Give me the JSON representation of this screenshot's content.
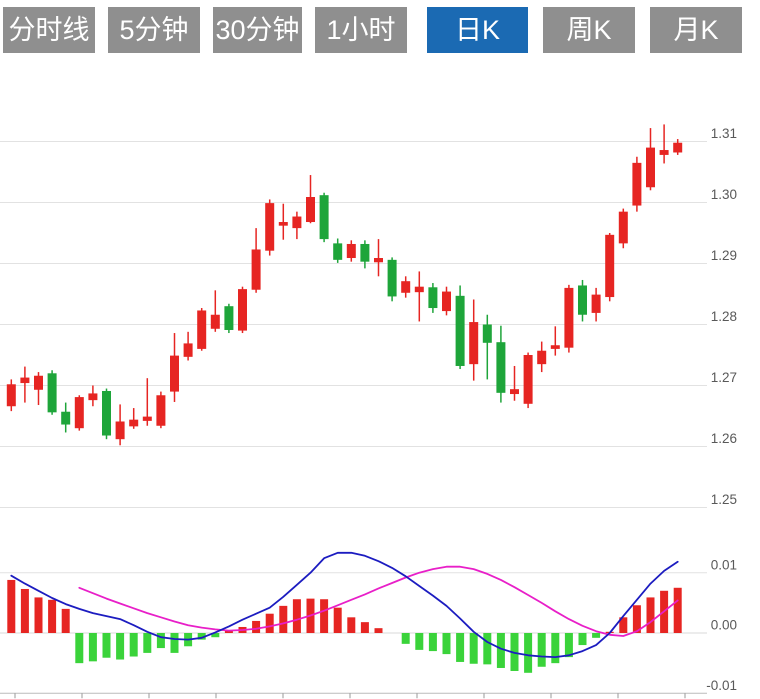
{
  "tabs": {
    "items": [
      {
        "label": "分时线",
        "active": false
      },
      {
        "label": "5分钟",
        "active": false
      },
      {
        "label": "30分钟",
        "active": false
      },
      {
        "label": "1小时",
        "active": false
      },
      {
        "label": "日K",
        "active": true
      },
      {
        "label": "周K",
        "active": false
      },
      {
        "label": "月K",
        "active": false
      }
    ]
  },
  "chart_data": {
    "type": "candlestick",
    "title": "",
    "legend_position": "none",
    "grid": true,
    "price_axis": {
      "side": "right",
      "tick_labels": [
        "1.31",
        "1.30",
        "1.29",
        "1.28",
        "1.27",
        "1.26",
        "1.25"
      ],
      "tick_values": [
        1.31,
        1.3,
        1.29,
        1.28,
        1.27,
        1.26,
        1.25
      ],
      "range": [
        1.245,
        1.315
      ]
    },
    "candles_ohlc": [
      [
        1.2666,
        1.271,
        1.2658,
        1.2702
      ],
      [
        1.2704,
        1.2731,
        1.2672,
        1.2713
      ],
      [
        1.2693,
        1.2722,
        1.2668,
        1.2716
      ],
      [
        1.272,
        1.2725,
        1.2652,
        1.2656
      ],
      [
        1.2657,
        1.2672,
        1.2623,
        1.2636
      ],
      [
        1.263,
        1.2684,
        1.2626,
        1.2681
      ],
      [
        1.2676,
        1.27,
        1.2666,
        1.2687
      ],
      [
        1.2691,
        1.2695,
        1.2612,
        1.2618
      ],
      [
        1.2612,
        1.2669,
        1.2602,
        1.2641
      ],
      [
        1.2633,
        1.2663,
        1.2629,
        1.2644
      ],
      [
        1.2642,
        1.2712,
        1.2634,
        1.2649
      ],
      [
        1.2634,
        1.269,
        1.263,
        1.2684
      ],
      [
        1.269,
        1.2786,
        1.2673,
        1.2749
      ],
      [
        1.2747,
        1.2788,
        1.2741,
        1.2769
      ],
      [
        1.276,
        1.2827,
        1.2757,
        1.2823
      ],
      [
        1.2793,
        1.2856,
        1.2788,
        1.2816
      ],
      [
        1.283,
        1.2834,
        1.2786,
        1.2791
      ],
      [
        1.279,
        1.2862,
        1.2786,
        1.2858
      ],
      [
        1.2857,
        1.2958,
        1.2852,
        1.2923
      ],
      [
        1.2921,
        1.3005,
        1.2913,
        1.2999
      ],
      [
        1.2962,
        1.2998,
        1.2939,
        1.2968
      ],
      [
        1.2958,
        1.2985,
        1.294,
        1.2977
      ],
      [
        1.2968,
        1.3045,
        1.2966,
        1.3009
      ],
      [
        1.3012,
        1.3016,
        1.2935,
        1.294
      ],
      [
        1.2933,
        1.2941,
        1.2901,
        1.2906
      ],
      [
        1.2909,
        1.2938,
        1.2903,
        1.2932
      ],
      [
        1.2932,
        1.2938,
        1.2892,
        1.2903
      ],
      [
        1.2902,
        1.294,
        1.2879,
        1.2909
      ],
      [
        1.2906,
        1.291,
        1.2838,
        1.2846
      ],
      [
        1.2852,
        1.2879,
        1.2844,
        1.2871
      ],
      [
        1.2853,
        1.2887,
        1.2805,
        1.2862
      ],
      [
        1.2861,
        1.2868,
        1.2819,
        1.2827
      ],
      [
        1.2822,
        1.2862,
        1.2815,
        1.2854
      ],
      [
        1.2847,
        1.2864,
        1.2727,
        1.2732
      ],
      [
        1.2735,
        1.2841,
        1.2708,
        1.2804
      ],
      [
        1.28,
        1.2816,
        1.271,
        1.277
      ],
      [
        1.2771,
        1.2798,
        1.2672,
        1.2688
      ],
      [
        1.2686,
        1.2732,
        1.2675,
        1.2694
      ],
      [
        1.267,
        1.2754,
        1.2663,
        1.275
      ],
      [
        1.2735,
        1.2772,
        1.2722,
        1.2757
      ],
      [
        1.276,
        1.2797,
        1.2749,
        1.2766
      ],
      [
        1.2762,
        1.2865,
        1.2754,
        1.286
      ],
      [
        1.2864,
        1.2873,
        1.2805,
        1.2816
      ],
      [
        1.2819,
        1.286,
        1.2805,
        1.2849
      ],
      [
        1.2845,
        1.295,
        1.2838,
        1.2947
      ],
      [
        1.2933,
        1.299,
        1.2925,
        1.2985
      ],
      [
        1.2995,
        1.3075,
        1.2985,
        1.3065
      ],
      [
        1.3025,
        1.3122,
        1.302,
        1.309
      ],
      [
        1.3078,
        1.3128,
        1.3064,
        1.3086
      ],
      [
        1.3082,
        1.3104,
        1.3078,
        1.3098
      ]
    ],
    "macd": {
      "axis_tick_labels": [
        "0.01",
        "0.00",
        "-0.01"
      ],
      "axis_tick_values": [
        0.01,
        0.0,
        -0.01
      ],
      "histogram": [
        0.0088,
        0.0073,
        0.0059,
        0.0055,
        0.004,
        -0.005,
        -0.0047,
        -0.0041,
        -0.0044,
        -0.0039,
        -0.0033,
        -0.0025,
        -0.0033,
        -0.0022,
        -0.0011,
        -0.0007,
        0.0004,
        0.001,
        0.002,
        0.0032,
        0.0045,
        0.0056,
        0.0057,
        0.0056,
        0.0042,
        0.0026,
        0.0018,
        0.0008,
        0.0,
        -0.0018,
        -0.0028,
        -0.003,
        -0.0035,
        -0.0048,
        -0.0051,
        -0.0052,
        -0.0058,
        -0.0063,
        -0.0066,
        -0.0056,
        -0.005,
        -0.004,
        -0.002,
        -0.0008,
        0.0002,
        0.0026,
        0.0046,
        0.0059,
        0.007,
        0.0075
      ],
      "dif_line": [
        0.0095,
        0.0082,
        0.007,
        0.0058,
        0.0048,
        0.004,
        0.0033,
        0.0028,
        0.0023,
        0.0013,
        0.0002,
        -0.0007,
        -0.001,
        -0.0011,
        -0.0008,
        0.0001,
        0.0011,
        0.0022,
        0.0032,
        0.0042,
        0.006,
        0.008,
        0.01,
        0.0124,
        0.0133,
        0.0133,
        0.0128,
        0.0119,
        0.0108,
        0.0094,
        0.0078,
        0.0062,
        0.0045,
        0.0024,
        0.0002,
        -0.0015,
        -0.0026,
        -0.0033,
        -0.0037,
        -0.0039,
        -0.004,
        -0.0037,
        -0.003,
        -0.002,
        0.0,
        0.0028,
        0.0055,
        0.0082,
        0.0103,
        0.0118
      ],
      "dea_line": [
        null,
        null,
        null,
        null,
        null,
        0.0075,
        0.0066,
        0.0057,
        0.0049,
        0.0041,
        0.0033,
        0.0026,
        0.0019,
        0.0013,
        0.0009,
        0.0006,
        0.0004,
        0.0005,
        0.0007,
        0.0011,
        0.0016,
        0.0022,
        0.0029,
        0.0037,
        0.0046,
        0.0055,
        0.0064,
        0.0074,
        0.0083,
        0.0092,
        0.01,
        0.0106,
        0.011,
        0.011,
        0.0106,
        0.0098,
        0.0088,
        0.0076,
        0.0063,
        0.005,
        0.0036,
        0.0023,
        0.0012,
        0.0003,
        -0.0003,
        -0.0005,
        0.0003,
        0.0018,
        0.0036,
        0.0054
      ]
    },
    "colors": {
      "up": "#e62522",
      "down": "#1ea53a",
      "hist_up": "#e62522",
      "hist_down": "#3ad33a",
      "dif": "#1c1cc0",
      "dea": "#e81fc8",
      "grid": "#e2e2e2",
      "axis_text": "#595959",
      "bottom_axis": "#bbbbbb",
      "tab_active_bg": "#1b6ab3",
      "tab_bg": "#8f8f8f"
    }
  }
}
